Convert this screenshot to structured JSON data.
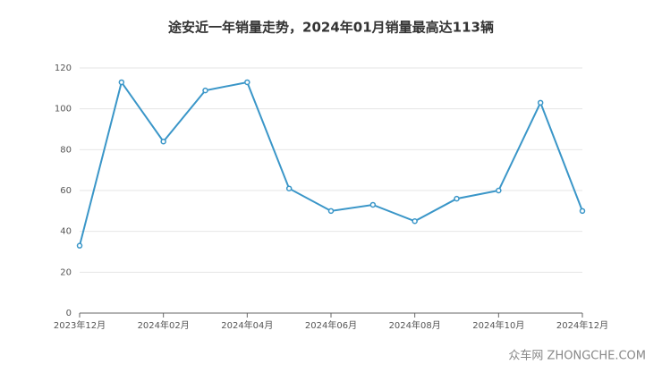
{
  "chart_data": {
    "type": "line",
    "title": "途安近一年销量走势，2024年01月销量最高达113辆",
    "categories": [
      "2023年12月",
      null,
      "2024年02月",
      null,
      "2024年04月",
      null,
      "2024年06月",
      null,
      "2024年08月",
      null,
      "2024年10月",
      null,
      "2024年12月"
    ],
    "series": [
      {
        "name": "销量",
        "color": "#3a96c8",
        "values": [
          33,
          113,
          84,
          109,
          113,
          61,
          50,
          53,
          45,
          56,
          60,
          103,
          50
        ]
      }
    ],
    "ylim": [
      0,
      120
    ],
    "yticks": [
      0,
      20,
      40,
      60,
      80,
      100,
      120
    ],
    "grid": true,
    "watermark": "众车网 ZHONGCHE.COM"
  }
}
